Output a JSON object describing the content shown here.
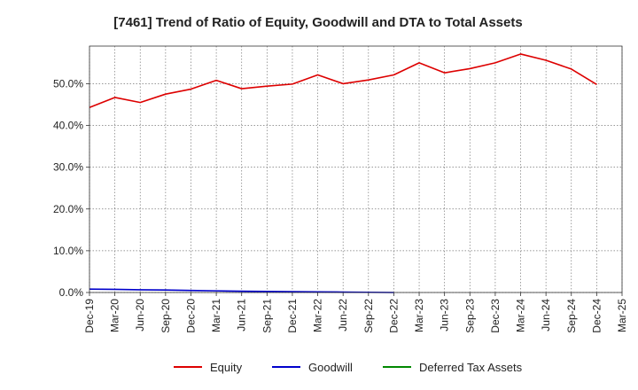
{
  "chart_data": {
    "type": "line",
    "title": "[7461]  Trend of Ratio of Equity, Goodwill and DTA to Total Assets",
    "xlabel": "",
    "ylabel": "",
    "ylim": [
      0,
      59
    ],
    "yticks": [
      0,
      10,
      20,
      30,
      40,
      50
    ],
    "ytick_labels": [
      "0.0%",
      "10.0%",
      "20.0%",
      "30.0%",
      "40.0%",
      "50.0%"
    ],
    "x": [
      "Dec-19",
      "Mar-20",
      "Jun-20",
      "Sep-20",
      "Dec-20",
      "Mar-21",
      "Jun-21",
      "Sep-21",
      "Dec-21",
      "Mar-22",
      "Jun-22",
      "Sep-22",
      "Dec-22",
      "Mar-23",
      "Jun-23",
      "Sep-23",
      "Dec-23",
      "Mar-24",
      "Jun-24",
      "Sep-24",
      "Dec-24",
      "Mar-25"
    ],
    "grid": true,
    "legend_position": "bottom",
    "series": [
      {
        "name": "Equity",
        "color": "#dd0000",
        "values": [
          44.3,
          46.7,
          45.5,
          47.5,
          48.7,
          50.8,
          48.8,
          49.4,
          49.9,
          52.1,
          50.0,
          50.9,
          52.1,
          55.0,
          52.6,
          53.6,
          55.0,
          57.1,
          55.6,
          53.5,
          49.8,
          null
        ]
      },
      {
        "name": "Goodwill",
        "color": "#0000cc",
        "values": [
          0.8,
          0.75,
          0.65,
          0.6,
          0.5,
          0.4,
          0.3,
          0.25,
          0.2,
          0.15,
          0.1,
          0.05,
          0.0,
          null,
          null,
          null,
          null,
          null,
          null,
          null,
          null,
          null
        ]
      },
      {
        "name": "Deferred Tax Assets",
        "color": "#008800",
        "values": [
          null,
          null,
          null,
          null,
          null,
          null,
          null,
          null,
          null,
          null,
          null,
          null,
          null,
          null,
          null,
          null,
          null,
          null,
          null,
          null,
          null,
          null
        ]
      }
    ]
  }
}
